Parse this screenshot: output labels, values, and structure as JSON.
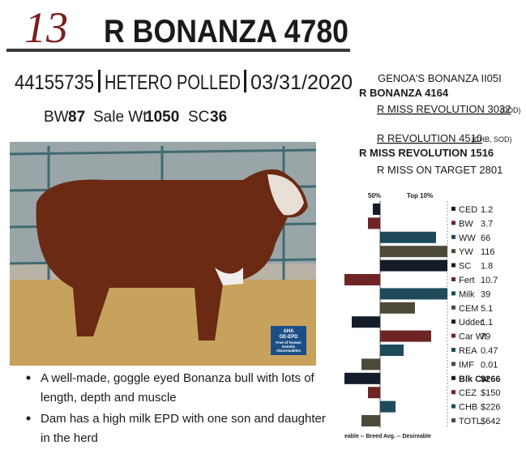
{
  "header": {
    "lot": "13",
    "name": "R BONANZA 4780"
  },
  "id_line": {
    "registration": "44155735",
    "polled": "HETERO POLLED",
    "birth_date": "03/31/2020"
  },
  "stats": [
    {
      "label": "BW",
      "value": 87
    },
    {
      "label": "Sale Wt",
      "value": 1050
    },
    {
      "label": "SC",
      "value": 36
    }
  ],
  "pedigree": {
    "sire_sire": "GENOA'S BONANZA II05I",
    "sire": "R BONANZA 4164",
    "sire_dam": {
      "name": "R MISS REVOLUTION 3032",
      "note": "(DDD)"
    },
    "dam_sire": {
      "name": "R REVOLUTION 4510",
      "note": "(CHB, SOD)"
    },
    "dam": "R MISS REVOLUTION 1516",
    "dam_dam": "R MISS ON TARGET 2801"
  },
  "photo": {
    "logo": [
      "AHA",
      "GE-EPD",
      "Free of Known",
      "Genetic",
      "Abnormalities"
    ]
  },
  "epd_chart": {
    "header_left": "50%",
    "header_right": "Top 10%",
    "footer": "eable -- Breed Avg. -- Desireable",
    "rows": [
      {
        "trait": "CED",
        "value": 1.2
      },
      {
        "trait": "BW",
        "value": 3.7
      },
      {
        "trait": "WW",
        "value": 66
      },
      {
        "trait": "YW",
        "value": 116
      },
      {
        "trait": "SC",
        "value": 1.8
      },
      {
        "trait": "Fert",
        "value": 10.7
      },
      {
        "trait": "Milk",
        "value": 39
      },
      {
        "trait": "CEM",
        "value": 5.1
      },
      {
        "trait": "Udder",
        "value": 1.1
      },
      {
        "trait": "Car Wt",
        "value": 79
      },
      {
        "trait": "REA",
        "value": 0.47
      },
      {
        "trait": "IMF",
        "value": 0.01
      },
      {
        "trait": "Blk Cw",
        "value": "$266"
      },
      {
        "trait": "CEZ",
        "value": "$150"
      },
      {
        "trait": "CHB",
        "value": "$226"
      },
      {
        "trait": "TOTL",
        "value": "$642"
      }
    ]
  },
  "notes": [
    "A well-made, goggle eyed Bonanza bull with lots of length, depth and muscle",
    "Dam has a  high milk EPD with one son and daughter in the herd"
  ]
}
